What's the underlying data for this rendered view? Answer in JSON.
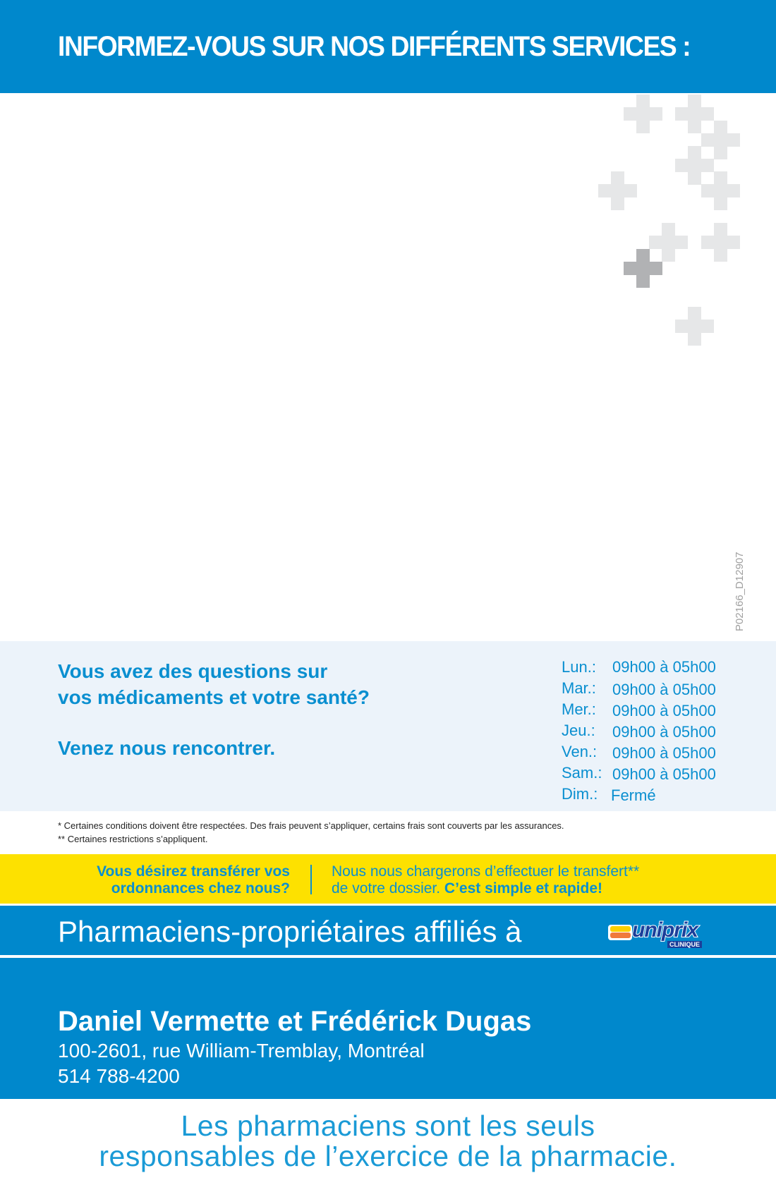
{
  "header": {
    "title": "INFORMEZ-VOUS SUR NOS DIFFÉRENTS SERVICES :"
  },
  "code": "P02166_D12907",
  "questions": {
    "line1": "Vous avez des questions sur",
    "line2": "vos médicaments et votre santé?",
    "line3": "Venez nous rencontrer."
  },
  "hours": [
    {
      "day": "Lun.:",
      "time": "09h00 à 05h00"
    },
    {
      "day": "Mar.:",
      "time": "09h00 à 05h00"
    },
    {
      "day": "Mer.:",
      "time": "09h00 à 05h00"
    },
    {
      "day": "Jeu.:",
      "time": "09h00 à 05h00"
    },
    {
      "day": "Ven.:",
      "time": "09h00 à 05h00"
    },
    {
      "day": "Sam.:",
      "time": "09h00 à 05h00"
    },
    {
      "day": "Dim.:",
      "time": "Fermé"
    }
  ],
  "footnotes": [
    "* Certaines conditions doivent être respectées. Des frais peuvent s’appliquer, certains frais sont couverts par les assurances.",
    "** Certaines restrictions s’appliquent."
  ],
  "transfer": {
    "left1": "Vous désirez transférer vos",
    "left2": "ordonnances chez nous?",
    "right1": "Nous nous chargerons d’effectuer le transfert**",
    "right2a": "de votre dossier. ",
    "right2b": "C’est simple et rapide!"
  },
  "affiliation": {
    "text": "Pharmaciens-propriétaires affiliés à",
    "logo": "uniprix",
    "logo_sub": "CLINIQUE"
  },
  "pharmacy": {
    "name": "Daniel Vermette et Frédérick Dugas",
    "address": "100-2601, rue William-Tremblay, Montréal",
    "phone": "514 788-4200"
  },
  "tagline": {
    "line1": "Les pharmaciens sont les seuls",
    "line2": "responsables de l’exercice de la pharmacie."
  },
  "colors": {
    "blue": "#0088cc",
    "yellow": "#fde100",
    "light": "#ecf3fa",
    "text_blue": "#0a8fd0"
  }
}
